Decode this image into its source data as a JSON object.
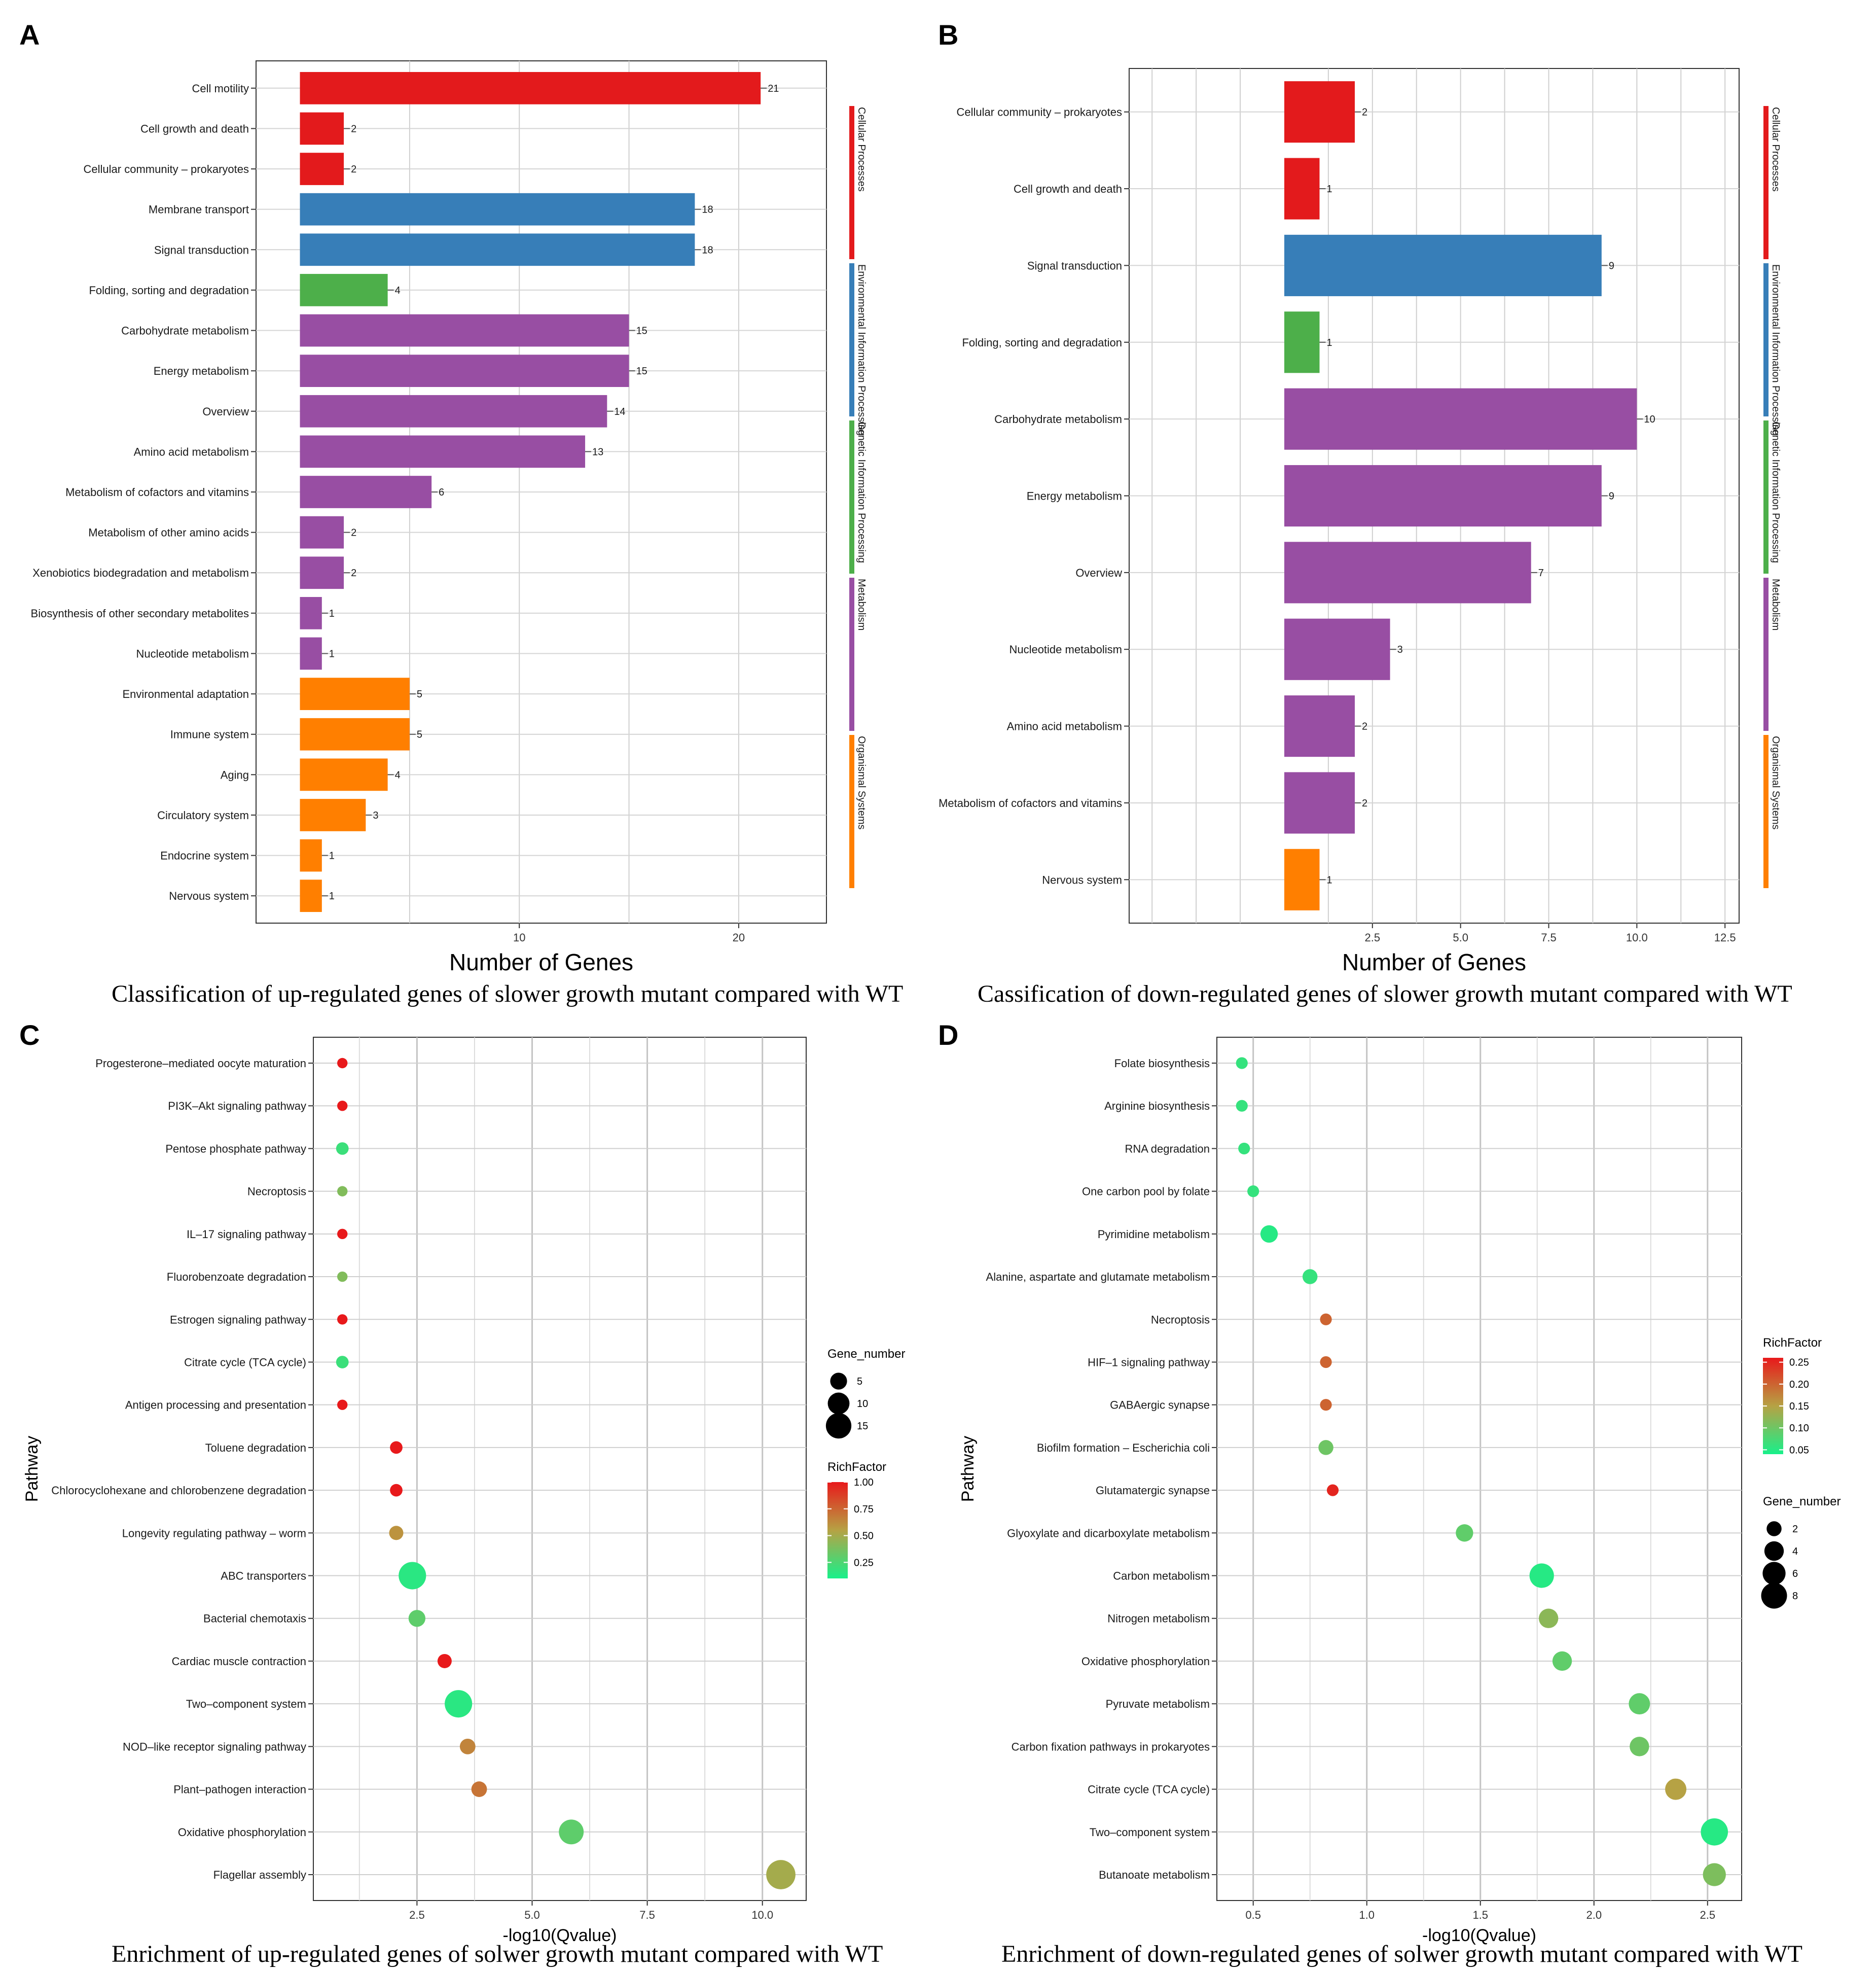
{
  "panels": [
    "A",
    "B",
    "C",
    "D"
  ],
  "captions": {
    "A": "Classification of up-regulated genes of slower growth mutant compared with WT",
    "B": "Cassification of down-regulated genes of slower growth mutant compared with WT",
    "C": "Enrichment of up-regulated genes of solwer growth mutant compared with WT",
    "D": "Enrichment of down-regulated genes of solwer growth mutant compared with WT"
  },
  "colors": {
    "Cellular Processes": "#e31a1c",
    "Environmental Information Processing": "#377eb8",
    "Genetic Information Processing": "#4daf4a",
    "Metabolism": "#984ea3",
    "Organismal Systems": "#ff7f00"
  },
  "chart_data": [
    {
      "type": "bar",
      "orientation": "horizontal",
      "title": "",
      "xlabel": "Number of Genes",
      "ylabel": "",
      "xlim": [
        -2,
        24
      ],
      "xticks": [
        10,
        20
      ],
      "categories": [
        "Cell motility",
        "Cell growth and death",
        "Cellular community – prokaryotes",
        "Membrane transport",
        "Signal transduction",
        "Folding, sorting and degradation",
        "Carbohydrate metabolism",
        "Energy metabolism",
        "Overview",
        "Amino acid metabolism",
        "Metabolism of cofactors and vitamins",
        "Metabolism of other amino acids",
        "Xenobiotics biodegradation and metabolism",
        "Biosynthesis of other secondary metabolites",
        "Nucleotide metabolism",
        "Environmental adaptation",
        "Immune system",
        "Aging",
        "Circulatory system",
        "Endocrine system",
        "Nervous system"
      ],
      "values": [
        21,
        2,
        2,
        18,
        18,
        4,
        15,
        15,
        14,
        13,
        6,
        2,
        2,
        1,
        1,
        5,
        5,
        4,
        3,
        1,
        1
      ],
      "groups": [
        "Cellular Processes",
        "Cellular Processes",
        "Cellular Processes",
        "Environmental Information Processing",
        "Environmental Information Processing",
        "Genetic Information Processing",
        "Metabolism",
        "Metabolism",
        "Metabolism",
        "Metabolism",
        "Metabolism",
        "Metabolism",
        "Metabolism",
        "Metabolism",
        "Metabolism",
        "Organismal Systems",
        "Organismal Systems",
        "Organismal Systems",
        "Organismal Systems",
        "Organismal Systems",
        "Organismal Systems"
      ],
      "group_legend": [
        "Cellular Processes",
        "Environmental Information Processing",
        "Genetic Information Processing",
        "Metabolism",
        "Organismal Systems"
      ]
    },
    {
      "type": "bar",
      "orientation": "horizontal",
      "title": "",
      "xlabel": "Number of Genes",
      "ylabel": "",
      "xlim": [
        -4.4,
        12.9
      ],
      "xticks": [
        2.5,
        5.0,
        7.5,
        10.0,
        12.5
      ],
      "tick_labels": [
        "2.5",
        "5.0",
        "7.5",
        "10.0",
        "12.5"
      ],
      "categories": [
        "Cellular community – prokaryotes",
        "Cell growth and death",
        "Signal transduction",
        "Folding, sorting and degradation",
        "Carbohydrate metabolism",
        "Energy metabolism",
        "Overview",
        "Nucleotide metabolism",
        "Amino acid metabolism",
        "Metabolism of cofactors and vitamins",
        "Nervous system"
      ],
      "values": [
        2,
        1,
        9,
        1,
        10,
        9,
        7,
        3,
        2,
        2,
        1
      ],
      "groups": [
        "Cellular Processes",
        "Cellular Processes",
        "Environmental Information Processing",
        "Genetic Information Processing",
        "Metabolism",
        "Metabolism",
        "Metabolism",
        "Metabolism",
        "Metabolism",
        "Metabolism",
        "Organismal Systems"
      ],
      "group_legend": [
        "Cellular Processes",
        "Environmental Information Processing",
        "Genetic Information Processing",
        "Metabolism",
        "Organismal Systems"
      ]
    },
    {
      "type": "scatter",
      "title": "",
      "xlabel": "-log10(Qvalue)",
      "ylabel": "Pathway",
      "xlim": [
        0.25,
        10.95
      ],
      "xticks": [
        2.5,
        5.0,
        7.5,
        10.0
      ],
      "tick_labels": [
        "2.5",
        "5.0",
        "7.5",
        "10.0"
      ],
      "categories": [
        "Progesterone–mediated oocyte maturation",
        "PI3K–Akt signaling pathway",
        "Pentose phosphate pathway",
        "Necroptosis",
        "IL–17 signaling pathway",
        "Fluorobenzoate degradation",
        "Estrogen signaling pathway",
        "Citrate cycle (TCA cycle)",
        "Antigen processing and presentation",
        "Toluene degradation",
        "Chlorocyclohexane and chlorobenzene degradation",
        "Longevity regulating pathway – worm",
        "ABC transporters",
        "Bacterial chemotaxis",
        "Cardiac muscle contraction",
        "Two–component system",
        "NOD–like receptor signaling pathway",
        "Plant–pathogen interaction",
        "Oxidative phosphorylation",
        "Flagellar assembly"
      ],
      "x": [
        0.88,
        0.88,
        0.88,
        0.88,
        0.88,
        0.88,
        0.88,
        0.88,
        0.88,
        2.05,
        2.05,
        2.05,
        2.4,
        2.5,
        3.1,
        3.4,
        3.6,
        3.85,
        5.85,
        10.4
      ],
      "rich_factor": [
        1.0,
        1.0,
        0.2,
        0.4,
        1.0,
        0.4,
        1.0,
        0.2,
        1.0,
        1.0,
        1.0,
        0.6,
        0.15,
        0.3,
        1.0,
        0.15,
        0.65,
        0.7,
        0.3,
        0.5
      ],
      "gene_number": [
        1,
        1,
        2,
        1,
        1,
        1,
        1,
        2,
        1,
        2,
        2,
        3,
        18,
        5,
        3,
        18,
        4,
        4,
        14,
        21
      ],
      "size_legend": {
        "title": "Gene_number",
        "values": [
          5,
          10,
          15
        ]
      },
      "color_legend": {
        "title": "RichFactor",
        "ticks": [
          1.0,
          0.75,
          0.5,
          0.25
        ],
        "tick_labels": [
          "1.00",
          "0.75",
          "0.50",
          "0.25"
        ],
        "range": [
          0.1,
          1.0
        ]
      }
    },
    {
      "type": "scatter",
      "title": "",
      "xlabel": "-log10(Qvalue)",
      "ylabel": "Pathway",
      "xlim": [
        0.34,
        2.65
      ],
      "xticks": [
        0.5,
        1.0,
        1.5,
        2.0,
        2.5
      ],
      "tick_labels": [
        "0.5",
        "1.0",
        "1.5",
        "2.0",
        "2.5"
      ],
      "categories": [
        "Folate biosynthesis",
        "Arginine biosynthesis",
        "RNA degradation",
        "One carbon pool by folate",
        "Pyrimidine metabolism",
        "Alanine, aspartate and glutamate metabolism",
        "Necroptosis",
        "HIF–1 signaling pathway",
        "GABAergic synapse",
        "Biofilm formation – Escherichia coli",
        "Glutamatergic synapse",
        "Glyoxylate and dicarboxylate metabolism",
        "Carbon metabolism",
        "Nitrogen metabolism",
        "Oxidative phosphorylation",
        "Pyruvate metabolism",
        "Carbon fixation pathways in prokaryotes",
        "Citrate cycle (TCA cycle)",
        "Two–component system",
        "Butanoate metabolism"
      ],
      "x": [
        0.45,
        0.45,
        0.46,
        0.5,
        0.57,
        0.75,
        0.82,
        0.82,
        0.82,
        0.82,
        0.85,
        1.43,
        1.77,
        1.8,
        1.86,
        2.2,
        2.2,
        2.36,
        2.53,
        2.53
      ],
      "rich_factor": [
        0.06,
        0.06,
        0.06,
        0.06,
        0.05,
        0.06,
        0.2,
        0.2,
        0.2,
        0.1,
        0.25,
        0.09,
        0.05,
        0.12,
        0.09,
        0.09,
        0.1,
        0.15,
        0.05,
        0.11
      ],
      "gene_number": [
        1,
        1,
        1,
        1,
        3,
        2,
        1,
        1,
        1,
        2,
        1,
        3,
        7,
        4,
        4,
        5,
        4,
        5,
        9,
        6
      ],
      "size_legend": {
        "title": "Gene_number",
        "values": [
          2,
          4,
          6,
          8
        ]
      },
      "color_legend": {
        "title": "RichFactor",
        "ticks": [
          0.25,
          0.2,
          0.15,
          0.1,
          0.05
        ],
        "tick_labels": [
          "0.25",
          "0.20",
          "0.15",
          "0.10",
          "0.05"
        ],
        "range": [
          0.04,
          0.26
        ]
      }
    }
  ]
}
